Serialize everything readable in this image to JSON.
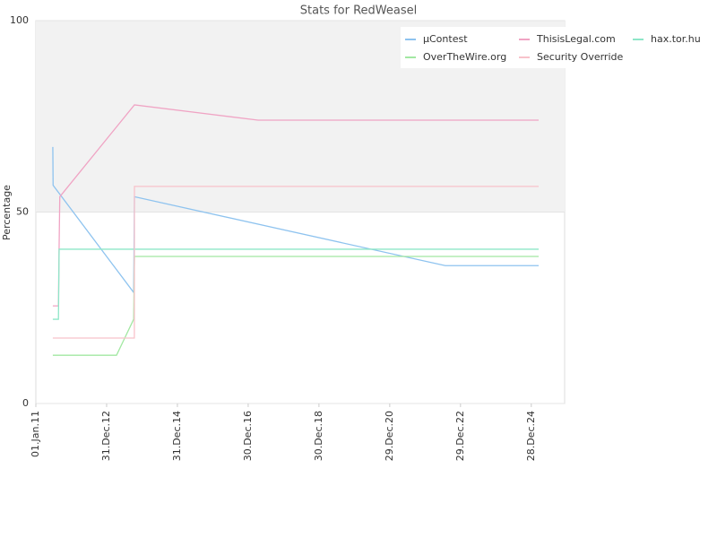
{
  "chart_data": {
    "type": "line",
    "title": "Stats for RedWeasel",
    "y_label": "Percentage",
    "xlim": [
      "2011-01-01",
      "2025-12-07"
    ],
    "xticks": [
      {
        "value": "2011-01-01",
        "label": "01.Jan.11"
      },
      {
        "value": "2012-12-31",
        "label": "31.Dec.12"
      },
      {
        "value": "2014-12-31",
        "label": "31.Dec.14"
      },
      {
        "value": "2016-12-30",
        "label": "30.Dec.16"
      },
      {
        "value": "2018-12-30",
        "label": "30.Dec.18"
      },
      {
        "value": "2020-12-29",
        "label": "29.Dec.20"
      },
      {
        "value": "2022-12-29",
        "label": "29.Dec.22"
      },
      {
        "value": "2024-12-28",
        "label": "28.Dec.24"
      }
    ],
    "ylim": [
      0,
      100
    ],
    "yticks": [
      0,
      50,
      100
    ],
    "series": [
      {
        "name": "µContest",
        "color": "#8ec3ef",
        "x": [
          "2011-06-25",
          "2011-06-28",
          "2013-10-06",
          "2013-10-14",
          "2022-07-25",
          "2025-03-14"
        ],
        "values": [
          67,
          57,
          29,
          54,
          36,
          36
        ]
      },
      {
        "name": "ThisisLegal.com",
        "color": "#f0a4c4",
        "x": [
          "2011-06-25",
          "2011-08-22",
          "2011-08-29",
          "2011-09-05",
          "2013-10-14",
          "2017-04-11",
          "2025-03-14"
        ],
        "values": [
          25.5,
          25.5,
          41,
          54,
          78,
          74,
          74
        ]
      },
      {
        "name": "hax.tor.hu",
        "color": "#8ee6c8",
        "x": [
          "2011-06-25",
          "2011-08-22",
          "2011-08-29",
          "2025-03-14"
        ],
        "values": [
          22,
          22,
          40.3,
          40.3
        ]
      },
      {
        "name": "OverTheWire.org",
        "color": "#a2e8a2",
        "x": [
          "2011-06-25",
          "2013-04-12",
          "2013-10-06",
          "2013-10-14",
          "2025-03-14"
        ],
        "values": [
          12.6,
          12.6,
          22,
          38.4,
          38.4
        ]
      },
      {
        "name": "Security Override",
        "color": "#f8c2ca",
        "x": [
          "2011-06-25",
          "2013-10-13",
          "2013-10-14",
          "2025-03-14"
        ],
        "values": [
          17.1,
          17.1,
          56.7,
          56.7
        ]
      }
    ]
  }
}
